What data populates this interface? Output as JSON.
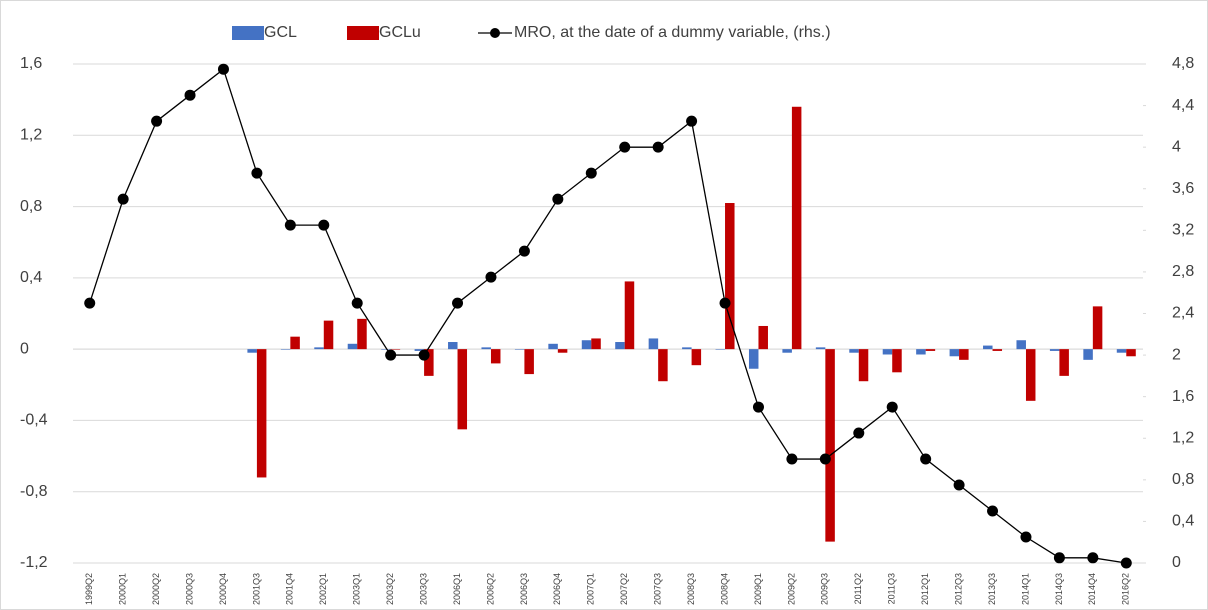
{
  "chart_data": {
    "type": "bar-line",
    "categories": [
      "1999Q2",
      "2000Q1",
      "2000Q2",
      "2000Q3",
      "2000Q4",
      "2001Q3",
      "2001Q4",
      "2002Q1",
      "2003Q1",
      "2003Q2",
      "2003Q3",
      "2006Q1",
      "2006Q2",
      "2006Q3",
      "2006Q4",
      "2007Q1",
      "2007Q2",
      "2007Q3",
      "2008Q3",
      "2008Q4",
      "2009Q1",
      "2009Q2",
      "2009Q3",
      "2011Q2",
      "2011Q3",
      "2012Q1",
      "2012Q3",
      "2013Q3",
      "2014Q1",
      "2014Q3",
      "2014Q4",
      "2016Q2"
    ],
    "series": [
      {
        "name": "GCL",
        "color": "#4472c4",
        "type": "bar",
        "values": [
          null,
          null,
          null,
          null,
          null,
          -0.02,
          0.0,
          0.01,
          0.03,
          0.0,
          -0.01,
          0.04,
          0.01,
          0.0,
          0.03,
          0.05,
          0.04,
          0.06,
          0.01,
          0.0,
          -0.11,
          -0.02,
          0.01,
          -0.02,
          -0.03,
          -0.03,
          -0.04,
          0.02,
          0.05,
          -0.01,
          -0.06,
          -0.02
        ]
      },
      {
        "name": "GCLu",
        "color": "#c00000",
        "type": "bar",
        "values": [
          null,
          null,
          null,
          null,
          null,
          -0.72,
          0.07,
          0.16,
          0.17,
          0.0,
          -0.15,
          -0.45,
          -0.08,
          -0.14,
          -0.02,
          0.06,
          0.38,
          -0.18,
          -0.09,
          0.82,
          0.13,
          1.36,
          -1.08,
          -0.18,
          -0.13,
          -0.01,
          -0.06,
          -0.01,
          -0.29,
          -0.15,
          0.24,
          -0.04
        ]
      },
      {
        "name": "MRO, at the date of a dummy variable, (rhs.)",
        "color": "#000000",
        "type": "line",
        "axis": "y2",
        "values": [
          2.5,
          3.5,
          4.25,
          4.5,
          4.75,
          3.75,
          3.25,
          3.25,
          2.5,
          2.0,
          2.0,
          2.5,
          2.75,
          3.0,
          3.5,
          3.75,
          4.0,
          4.0,
          4.25,
          2.5,
          1.5,
          1.0,
          1.0,
          1.25,
          1.5,
          1.0,
          0.75,
          0.5,
          0.25,
          0.05,
          0.05,
          0.0
        ]
      }
    ],
    "ylim": [
      -1.2,
      1.6
    ],
    "yticks": [
      {
        "value": -1.2,
        "label": "-1,2"
      },
      {
        "value": -0.8,
        "label": "-0,8"
      },
      {
        "value": -0.4,
        "label": "-0,4"
      },
      0,
      {
        "value": 0.4,
        "label": "0,4"
      },
      {
        "value": 0.8,
        "label": "0,8"
      },
      {
        "value": 1.2,
        "label": "1,2"
      },
      {
        "value": 1.6,
        "label": "1,6"
      }
    ],
    "y2lim": [
      0,
      4.8
    ],
    "y2ticks": [
      0,
      {
        "value": 0.4,
        "label": "0,4"
      },
      {
        "value": 0.8,
        "label": "0,8"
      },
      {
        "value": 1.2,
        "label": "1,2"
      },
      {
        "value": 1.6,
        "label": "1,6"
      },
      2,
      {
        "value": 2.4,
        "label": "2,4"
      },
      {
        "value": 2.8,
        "label": "2,8"
      },
      {
        "value": 3.2,
        "label": "3,2"
      },
      {
        "value": 3.6,
        "label": "3,6"
      },
      4,
      {
        "value": 4.4,
        "label": "4,4"
      },
      {
        "value": 4.8,
        "label": "4,8"
      }
    ],
    "grid": true,
    "legend": "top"
  }
}
